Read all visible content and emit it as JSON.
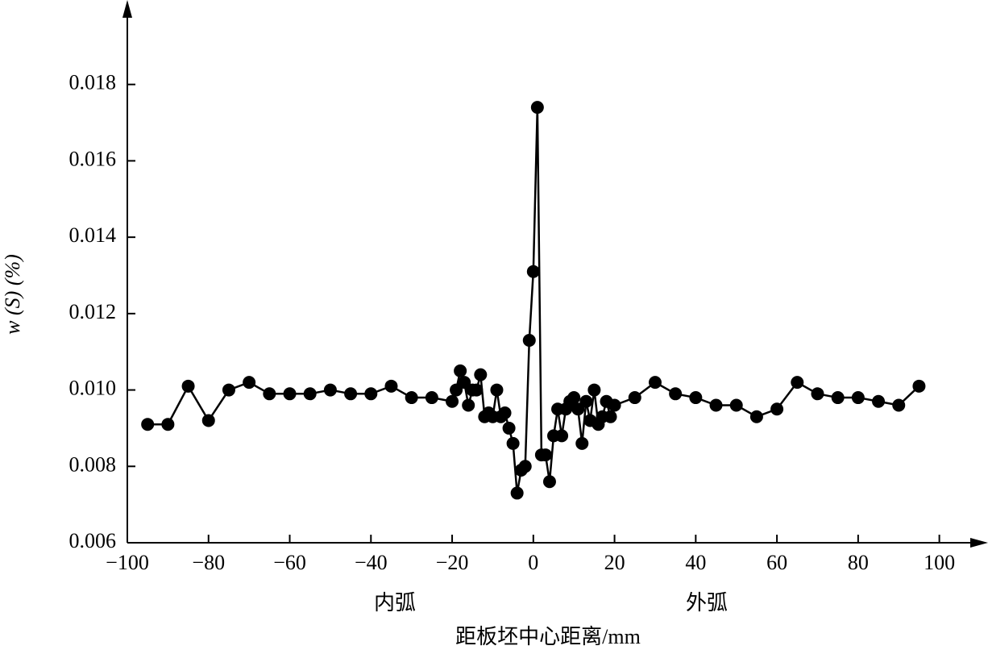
{
  "chart_data": {
    "type": "line",
    "x_label": "距板坯中心距离/mm",
    "y_label": "w (S) (%)",
    "annotations": [
      "内弧",
      "外弧"
    ],
    "x": [
      -95,
      -90,
      -85,
      -80,
      -75,
      -70,
      -65,
      -60,
      -55,
      -50,
      -45,
      -40,
      -35,
      -30,
      -25,
      -20,
      -19,
      -18,
      -17,
      -16,
      -15,
      -14,
      -13,
      -12,
      -11,
      -10,
      -9,
      -8,
      -7,
      -6,
      -5,
      -4,
      -3,
      -2,
      -1,
      0,
      1,
      2,
      3,
      4,
      5,
      6,
      7,
      8,
      9,
      10,
      11,
      12,
      13,
      14,
      15,
      16,
      17,
      18,
      19,
      20,
      25,
      30,
      35,
      40,
      45,
      50,
      55,
      60,
      65,
      70,
      75,
      80,
      85,
      90,
      95
    ],
    "series": [
      {
        "color": "#000000",
        "values": [
          0.0091,
          0.0091,
          0.0101,
          0.0092,
          0.01,
          0.0102,
          0.0099,
          0.0099,
          0.0099,
          0.01,
          0.0099,
          0.0099,
          0.0101,
          0.0098,
          0.0098,
          0.0097,
          0.01,
          0.0105,
          0.0102,
          0.0096,
          0.01,
          0.01,
          0.0104,
          0.0093,
          0.0094,
          0.0093,
          0.01,
          0.0093,
          0.0094,
          0.009,
          0.0086,
          0.0073,
          0.0079,
          0.008,
          0.0113,
          0.0131,
          0.0174,
          0.0083,
          0.0083,
          0.0076,
          0.0088,
          0.0095,
          0.0088,
          0.0095,
          0.0097,
          0.0098,
          0.0095,
          0.0086,
          0.0097,
          0.0092,
          0.01,
          0.0091,
          0.0093,
          0.0097,
          0.0093,
          0.0096,
          0.0098,
          0.0102,
          0.0099,
          0.0098,
          0.0096,
          0.0096,
          0.0093,
          0.0095,
          0.0102,
          0.0099,
          0.0098,
          0.0098,
          0.0097,
          0.0096,
          0.0101
        ]
      }
    ],
    "xlim": [
      -100,
      110
    ],
    "xticks": [
      {
        "value": -100,
        "label": "−100"
      },
      {
        "value": -80,
        "label": "−80"
      },
      {
        "value": -60,
        "label": "−60"
      },
      {
        "value": -40,
        "label": "−40"
      },
      {
        "value": -20,
        "label": "−20"
      },
      0,
      20,
      40,
      60,
      80,
      100
    ],
    "ylim": [
      0.006,
      0.02
    ],
    "yticks": [
      0.006,
      0.008,
      {
        "value": 0.01,
        "label": "0.010"
      },
      0.012,
      0.014,
      0.016,
      0.018
    ]
  }
}
